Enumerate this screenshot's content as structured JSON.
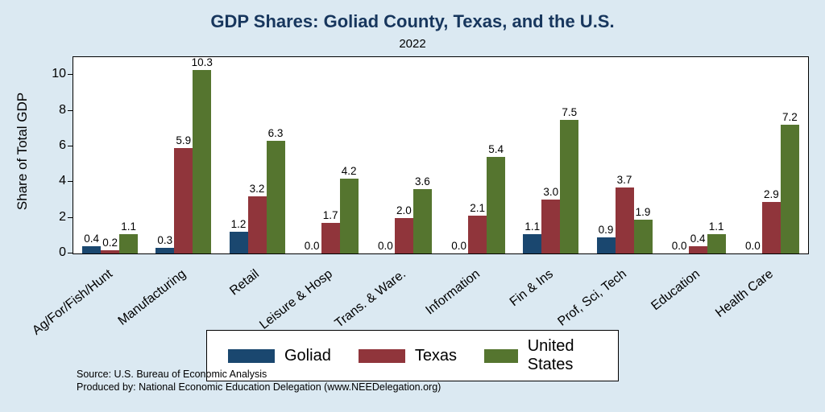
{
  "title": "GDP Shares: Goliad County, Texas, and the U.S.",
  "subtitle": "2022",
  "chart_data": {
    "type": "bar",
    "title": "GDP Shares: Goliad County, Texas, and the U.S.",
    "subtitle": "2022",
    "ylabel": "Share of Total GDP",
    "xlabel": "",
    "ylim": [
      0,
      11
    ],
    "yticks": [
      0,
      2,
      4,
      6,
      8,
      10
    ],
    "grid": false,
    "legend_position": "bottom",
    "value_labels": true,
    "categories": [
      "Ag/For/Fish/Hunt",
      "Manufacturing",
      "Retail",
      "Leisure & Hosp",
      "Trans. & Ware.",
      "Information",
      "Fin & Ins",
      "Prof, Sci, Tech",
      "Education",
      "Health Care"
    ],
    "series": [
      {
        "name": "Goliad",
        "color": "#1a476f",
        "values": [
          0.4,
          0.3,
          1.2,
          0.0,
          0.0,
          0.0,
          1.1,
          0.9,
          0.0,
          0.0
        ]
      },
      {
        "name": "Texas",
        "color": "#90353b",
        "values": [
          0.2,
          5.9,
          3.2,
          1.7,
          2.0,
          2.1,
          3.0,
          3.7,
          0.4,
          2.9
        ]
      },
      {
        "name": "United States",
        "color": "#55752f",
        "values": [
          1.1,
          10.3,
          6.3,
          4.2,
          3.6,
          5.4,
          7.5,
          1.9,
          1.1,
          7.2
        ]
      }
    ]
  },
  "footnotes": {
    "line1": "Source: U.S. Bureau of Economic Analysis",
    "line2": "Produced by: National Economic Education Delegation (www.NEEDelegation.org)"
  },
  "colors": {
    "background": "#dbe9f2",
    "title_text": "#17365d",
    "plot_background": "#ffffff"
  }
}
